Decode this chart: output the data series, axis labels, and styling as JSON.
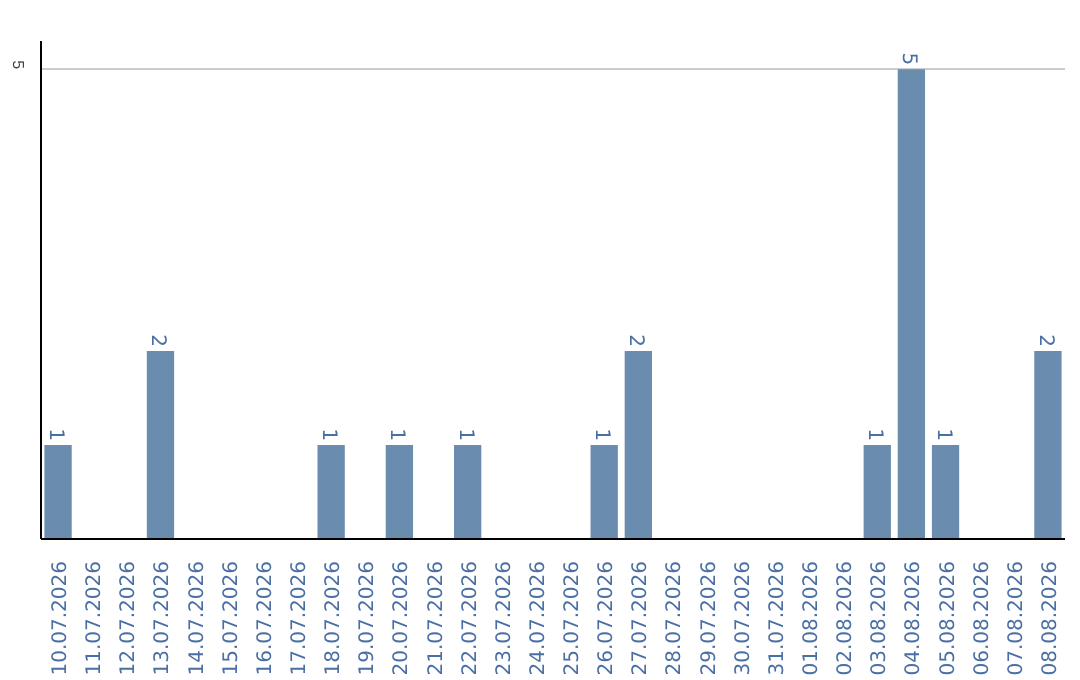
{
  "chart_data": {
    "type": "bar",
    "categories": [
      "10.07.2026",
      "11.07.2026",
      "12.07.2026",
      "13.07.2026",
      "14.07.2026",
      "15.07.2026",
      "16.07.2026",
      "17.07.2026",
      "18.07.2026",
      "19.07.2026",
      "20.07.2026",
      "21.07.2026",
      "22.07.2026",
      "23.07.2026",
      "24.07.2026",
      "25.07.2026",
      "26.07.2026",
      "27.07.2026",
      "28.07.2026",
      "29.07.2026",
      "30.07.2026",
      "31.07.2026",
      "01.08.2026",
      "02.08.2026",
      "03.08.2026",
      "04.08.2026",
      "05.08.2026",
      "06.08.2026",
      "07.08.2026",
      "08.08.2026"
    ],
    "values": [
      1,
      0,
      0,
      2,
      0,
      0,
      0,
      0,
      1,
      0,
      1,
      0,
      1,
      0,
      0,
      0,
      1,
      2,
      0,
      0,
      0,
      0,
      0,
      0,
      1,
      5,
      1,
      0,
      0,
      2
    ],
    "value_labels": [
      "1",
      null,
      null,
      "2",
      null,
      null,
      null,
      null,
      "1",
      null,
      "1",
      null,
      "1",
      null,
      null,
      null,
      "1",
      "2",
      null,
      null,
      null,
      null,
      null,
      null,
      "1",
      "5",
      "1",
      null,
      null,
      "2"
    ],
    "color": "#6a8caf",
    "ylim": [
      0,
      5.3
    ],
    "yticks": [
      5
    ],
    "grid": "y"
  }
}
